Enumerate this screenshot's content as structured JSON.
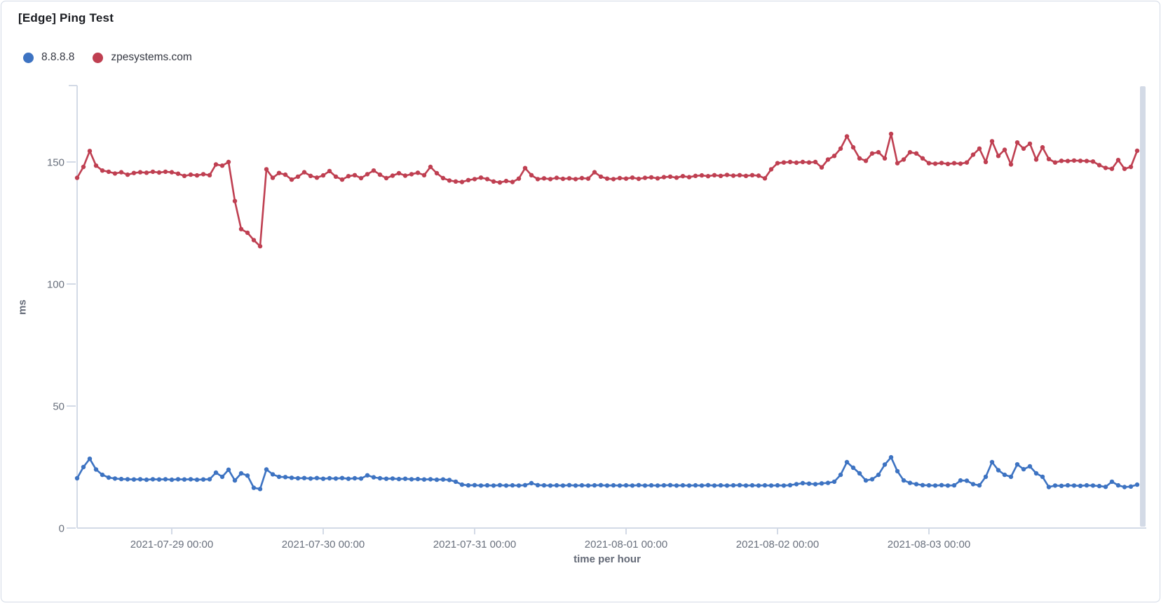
{
  "panel": {
    "title": "[Edge] Ping Test"
  },
  "legend": {
    "items": [
      {
        "label": "8.8.8.8",
        "color": "#3d73c2"
      },
      {
        "label": "zpesystems.com",
        "color": "#bf3f51"
      }
    ]
  },
  "axes": {
    "y_title": "ms",
    "x_title": "time per hour"
  },
  "chart_data": {
    "type": "line",
    "title": "[Edge] Ping Test",
    "xlabel": "time per hour",
    "ylabel": "ms",
    "x_unit": "1 point per hour",
    "ylim": [
      0,
      181
    ],
    "y_ticks": [
      0,
      50,
      100,
      150
    ],
    "grid": false,
    "legend_position": "top-left",
    "x_tick_labels": [
      "2021-07-29 00:00",
      "2021-07-30 00:00",
      "2021-07-31 00:00",
      "2021-08-01 00:00",
      "2021-08-02 00:00",
      "2021-08-03 00:00"
    ],
    "x_tick_indices": [
      15,
      39,
      63,
      87,
      111,
      135
    ],
    "series": [
      {
        "name": "8.8.8.8",
        "color": "#3d73c2",
        "values": [
          20.4,
          25,
          28.4,
          24,
          21.8,
          20.7,
          20.3,
          20.1,
          20,
          19.9,
          20,
          19.8,
          20,
          19.9,
          20,
          19.8,
          20,
          19.9,
          20,
          19.8,
          19.9,
          20,
          22.7,
          21,
          23.9,
          19.5,
          22.4,
          21.5,
          16.5,
          16,
          24,
          22,
          21,
          20.9,
          20.6,
          20.4,
          20.5,
          20.3,
          20.5,
          20.2,
          20.4,
          20.3,
          20.5,
          20.2,
          20.4,
          20.3,
          21.6,
          20.8,
          20.4,
          20.2,
          20.3,
          20.1,
          20.2,
          20,
          20.1,
          19.9,
          20,
          19.8,
          19.9,
          19.7,
          19,
          17.8,
          17.5,
          17.6,
          17.4,
          17.5,
          17.4,
          17.6,
          17.4,
          17.5,
          17.4,
          17.6,
          18.4,
          17.6,
          17.5,
          17.4,
          17.5,
          17.4,
          17.6,
          17.4,
          17.5,
          17.4,
          17.5,
          17.6,
          17.4,
          17.5,
          17.4,
          17.5,
          17.4,
          17.6,
          17.4,
          17.5,
          17.4,
          17.5,
          17.6,
          17.4,
          17.5,
          17.4,
          17.5,
          17.4,
          17.6,
          17.4,
          17.5,
          17.4,
          17.5,
          17.6,
          17.4,
          17.5,
          17.4,
          17.5,
          17.4,
          17.5,
          17.4,
          17.6,
          18,
          18.4,
          18.2,
          18,
          18.3,
          18.5,
          19,
          21.8,
          27,
          24.7,
          22.4,
          19.5,
          20,
          21.8,
          26,
          29,
          23.3,
          19.5,
          18.5,
          18,
          17.6,
          17.5,
          17.4,
          17.6,
          17.4,
          17.5,
          19.5,
          19.4,
          18,
          17.5,
          21,
          27,
          23.7,
          21.8,
          21,
          26.1,
          24.1,
          25.3,
          22.4,
          21,
          16.8,
          17.4,
          17.3,
          17.5,
          17.4,
          17.3,
          17.5,
          17.4,
          17.2,
          16.9,
          19,
          17.5,
          16.8,
          17,
          17.8
        ]
      },
      {
        "name": "zpesystems.com",
        "color": "#bf3f51",
        "values": [
          143.5,
          148,
          154.5,
          148.5,
          146.5,
          146,
          145.3,
          145.8,
          144.8,
          145.5,
          145.8,
          145.6,
          146,
          145.7,
          146,
          145.8,
          145.2,
          144.3,
          144.8,
          144.5,
          145,
          144.6,
          149,
          148.5,
          150,
          134,
          122.5,
          121,
          118,
          115.5,
          147,
          143.5,
          145.5,
          144.8,
          142.8,
          144,
          145.8,
          144.3,
          143.6,
          144.5,
          146.3,
          144,
          142.8,
          144.2,
          144.6,
          143.4,
          145,
          146.5,
          144.8,
          143.4,
          144.4,
          145.4,
          144.4,
          145,
          145.6,
          144.6,
          148,
          145.4,
          143.4,
          142.4,
          142,
          141.8,
          142.6,
          143,
          143.6,
          143,
          142,
          141.6,
          142.2,
          141.8,
          143.2,
          147.5,
          144.6,
          143,
          143.3,
          143,
          143.5,
          143.1,
          143.3,
          143,
          143.4,
          143.2,
          145.8,
          144,
          143.2,
          143,
          143.4,
          143.2,
          143.6,
          143.1,
          143.5,
          143.7,
          143.3,
          143.8,
          144,
          143.6,
          144.2,
          143.8,
          144.3,
          144.5,
          144.2,
          144.6,
          144.3,
          144.7,
          144.4,
          144.6,
          144.3,
          144.6,
          144.4,
          143.3,
          147,
          149.5,
          149.8,
          150,
          149.7,
          150,
          149.8,
          150,
          147.8,
          151,
          152.5,
          155.5,
          160.5,
          156,
          151.5,
          150.5,
          153.5,
          154,
          151.5,
          161.5,
          149.5,
          151,
          154,
          153.5,
          151.5,
          149.5,
          149.3,
          149.6,
          149.2,
          149.5,
          149.3,
          149.8,
          153,
          155.5,
          150,
          158.5,
          152.5,
          155,
          149,
          158,
          155.5,
          157.5,
          151,
          156,
          151.2,
          149.8,
          150.5,
          150.4,
          150.6,
          150.5,
          150.4,
          150.2,
          148.7,
          147.6,
          147.2,
          150.8,
          147.2,
          148,
          154.6
        ]
      }
    ]
  },
  "colors": {
    "axis_line": "#d3dae6",
    "tick_label": "#69707d",
    "axis_title": "#646a77",
    "panel_border": "#d3dae6",
    "drag_handle": "#d3dae6"
  }
}
